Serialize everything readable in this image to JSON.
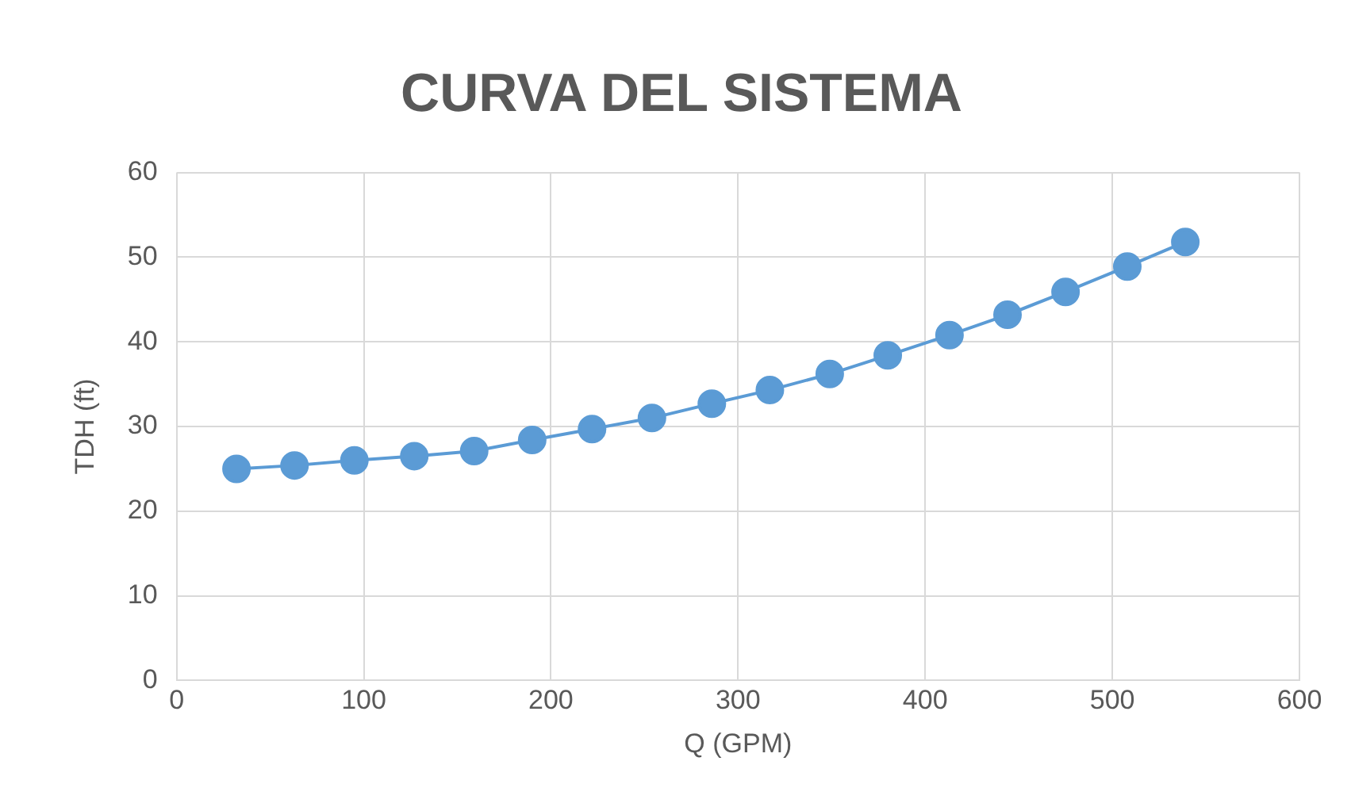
{
  "chart_data": {
    "type": "line",
    "title": "CURVA DEL SISTEMA",
    "xlabel": "Q (GPM)",
    "ylabel": "TDH (ft)",
    "x": [
      32,
      63,
      95,
      127,
      159,
      190,
      222,
      254,
      286,
      317,
      349,
      380,
      413,
      444,
      475,
      508,
      539
    ],
    "series": [
      {
        "color": "#5b9bd5",
        "values": [
          25.0,
          25.4,
          26.0,
          26.5,
          27.1,
          28.4,
          29.7,
          31.0,
          32.7,
          34.3,
          36.2,
          38.4,
          40.8,
          43.2,
          45.9,
          48.9,
          51.8
        ]
      }
    ],
    "xlim": [
      0,
      600
    ],
    "xticks": [
      0,
      100,
      200,
      300,
      400,
      500,
      600
    ],
    "ylim": [
      0,
      60
    ],
    "yticks": [
      0,
      10,
      20,
      30,
      40,
      50,
      60
    ],
    "grid": true,
    "marker": "circle",
    "line_style": "solid",
    "legend": false
  }
}
